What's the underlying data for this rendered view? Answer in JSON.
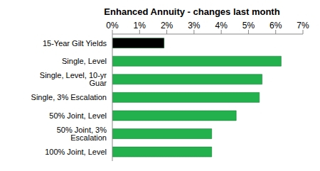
{
  "chart_data": {
    "type": "bar",
    "title": "Enhanced Annuity - changes last month",
    "orientation": "horizontal",
    "categories": [
      "15-Year Gilt Yields",
      "Single, Level",
      "Single, Level, 10-yr Guar",
      "Single, 3% Escalation",
      "50% Joint, Level",
      "50% Joint, 3% Escalation",
      "100% Joint, Level"
    ],
    "values": [
      1.9,
      6.2,
      5.5,
      5.4,
      4.55,
      3.65,
      3.65
    ],
    "colors": [
      "#000000",
      "#22b14c",
      "#22b14c",
      "#22b14c",
      "#22b14c",
      "#22b14c",
      "#22b14c"
    ],
    "xlim": [
      0,
      7
    ],
    "xticks": [
      {
        "value": 0,
        "label": "0%"
      },
      {
        "value": 1,
        "label": "1%"
      },
      {
        "value": 2,
        "label": "2%"
      },
      {
        "value": 3,
        "label": "3%"
      },
      {
        "value": 4,
        "label": "4%"
      },
      {
        "value": 5,
        "label": "5%"
      },
      {
        "value": 6,
        "label": "6%"
      },
      {
        "value": 7,
        "label": "7%"
      }
    ],
    "grid": false
  }
}
